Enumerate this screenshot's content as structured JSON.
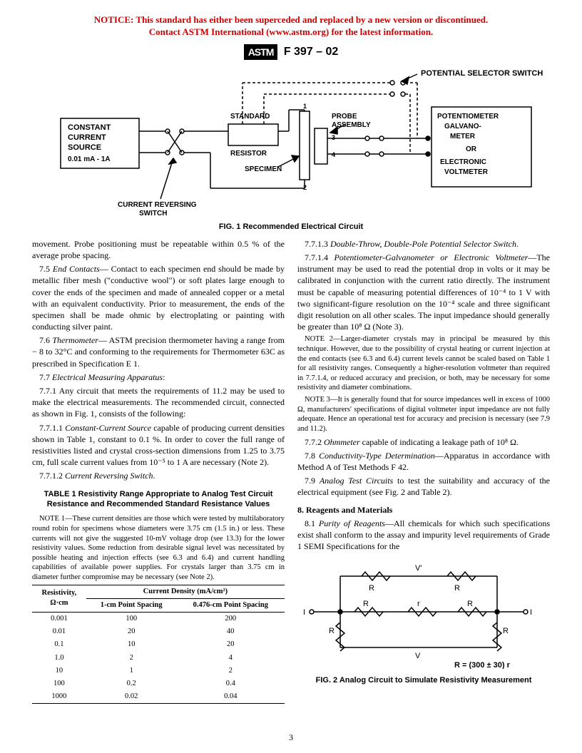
{
  "notice": {
    "line1": "NOTICE: This standard has either been superceded and replaced by a new version or discontinued.",
    "line2": "Contact ASTM International (www.astm.org) for the latest information."
  },
  "header": {
    "logo_text": "ASTM",
    "std_id": "F 397 – 02"
  },
  "fig1": {
    "caption": "FIG. 1 Recommended Electrical Circuit",
    "labels": {
      "pot_selector": "POTENTIAL SELECTOR SWITCH",
      "ccs_line1": "CONSTANT",
      "ccs_line2": "CURRENT",
      "ccs_line3": "SOURCE",
      "ccs_line4": "0.01 mA - 1A",
      "std_res_1": "STANDARD",
      "std_res_2": "RESISTOR",
      "specimen": "SPECIMEN",
      "probe_1": "PROBE",
      "probe_2": "ASSEMBLY",
      "right_1": "POTENTIOMETER",
      "right_2": "GALVANO-",
      "right_3": "METER",
      "right_4": "OR",
      "right_5": "ELECTRONIC",
      "right_6": "VOLTMETER",
      "crs_1": "CURRENT REVERSING",
      "crs_2": "SWITCH",
      "n1": "1",
      "n2": "2",
      "n3": "3",
      "n4": "4"
    }
  },
  "left_col": {
    "p1": "movement. Probe positioning must be repeatable within 0.5 % of the average probe spacing.",
    "p2_prefix": "7.5 ",
    "p2_head": "End Contacts",
    "p2_body": "— Contact to each specimen end should be made by metallic fiber mesh (\"conductive wool\") or soft plates large enough to cover the ends of the specimen and made of annealed copper or a metal with an equivalent conductivity. Prior to measurement, the ends of the specimen shall be made ohmic by electroplating or painting with conducting silver paint.",
    "p3_prefix": "7.6 ",
    "p3_head": "Thermometer",
    "p3_body": "— ASTM precision thermometer having a range from − 8 to 32°C and conforming to the requirements for Thermometer 63C as prescribed in Specification E 1.",
    "p4_prefix": "7.7 ",
    "p4_head": "Electrical Measuring Apparatus",
    "p4_body": ":",
    "p5": "7.7.1 Any circuit that meets the requirements of 11.2 may be used to make the electrical measurements. The recommended circuit, connected as shown in Fig. 1, consists of the following:",
    "p6_prefix": "7.7.1.1 ",
    "p6_head": "Constant-Current Source",
    "p6_body": " capable of producing current densities shown in Table 1, constant to 0.1 %. In order to cover the full range of resistivities listed and crystal cross-section dimensions from 1.25 to 3.75 cm, full scale current values from 10⁻⁵ to 1 A are necessary (Note 2).",
    "p7_prefix": "7.7.1.2 ",
    "p7_head": "Current Reversing Switch",
    "p7_body": ".",
    "table_title": "TABLE 1  Resistivity Range Appropriate to Analog Test Circuit Resistance and Recommended Standard Resistance Values",
    "table_note_label": "NOTE 1",
    "table_note": "—These current densities are those which were tested by multilaboratory round robin for specimens whose diameters were 3.75 cm (1.5 in.) or less. These currents will not give the suggested 10-mV voltage drop (see 13.3) for the lower resistivity values. Some reduction from desirable signal level was necessitated by possible heating and injection effects (see 6.3 and 6.4) and current handling capabilities of available power supplies. For crystals larger than 3.75 cm in diameter further compromise may be necessary (see Note 2).",
    "table1": {
      "col1_h1": "Resistivity,",
      "col1_h2": "Ω·cm",
      "spanhead": "Current Density (mA/cm²)",
      "col2_h": "1-cm Point Spacing",
      "col3_h": "0.476-cm Point Spacing",
      "rows": [
        [
          "0.001",
          "100",
          "200"
        ],
        [
          "0.01",
          "20",
          "40"
        ],
        [
          "0.1",
          "10",
          "20"
        ],
        [
          "1.0",
          "2",
          "4"
        ],
        [
          "10",
          "1",
          "2"
        ],
        [
          "100",
          "0.2",
          "0.4"
        ],
        [
          "1000",
          "0.02",
          "0.04"
        ]
      ]
    }
  },
  "right_col": {
    "p1_prefix": "7.7.1.3 ",
    "p1_head": "Double-Throw, Double-Pole Potential Selector Switch",
    "p1_body": ".",
    "p2_prefix": "7.7.1.4 ",
    "p2_head": "Potentiometer-Galvanometer or Electronic Voltmeter",
    "p2_body": "—The instrument may be used to read the potential drop in volts or it may be calibrated in conjunction with the current ratio directly. The instrument must be capable of measuring potential differences of 10⁻⁴ to 1 V with two significant-figure resolution on the 10⁻⁴ scale and three significant digit resolution on all other scales. The input impedance should generally be greater than 10⁸ Ω (Note 3).",
    "note2_label": "NOTE 2",
    "note2": "—Larger-diameter crystals may in principal be measured by this technique. However, due to the possibility of crystal heating or current injection at the end contacts (see 6.3 and 6.4) current levels cannot be scaled based on Table 1 for all resistivity ranges. Consequently a higher-resolution voltmeter than required in 7.7.1.4, or reduced accuracy and precision, or both, may be necessary for some resistivity and diameter combinations.",
    "note3_label": "NOTE 3",
    "note3": "—It is generally found that for source impedances well in excess of 1000 Ω, manufacturers' specifications of digital voltmeter input impedance are not fully adequate. Hence an operational test for accuracy and precision is necessary (see 7.9 and 11.2).",
    "p3_prefix": "7.7.2 ",
    "p3_head": "Ohmmeter",
    "p3_body": " capable of indicating a leakage path of 10⁸ Ω.",
    "p4_prefix": "7.8 ",
    "p4_head": "Conductivity-Type Determination",
    "p4_body": "—Apparatus in accordance with Method A of Test Methods F 42.",
    "p5_prefix": "7.9 ",
    "p5_head": "Analog Test Circuits",
    "p5_body": " to test the suitability and accuracy of the electrical equipment (see Fig. 2 and Table 2).",
    "sec8_head": "8.  Reagents and Materials",
    "p6_prefix": "8.1 ",
    "p6_head": "Purity of Reagents",
    "p6_body": "—All chemicals for which such specifications exist shall conform to the assay and impurity level requirements of Grade 1 SEMI Specifications for the"
  },
  "fig2": {
    "caption": "FIG. 2 Analog Circuit to Simulate Resistivity Measurement",
    "eq": "R = (300 ± 30) r",
    "labels": {
      "I_left": "I",
      "I_right": "I",
      "R": "R",
      "r": "r",
      "Vtop": "V'",
      "Vbot": "V"
    }
  },
  "pagenum": "3"
}
